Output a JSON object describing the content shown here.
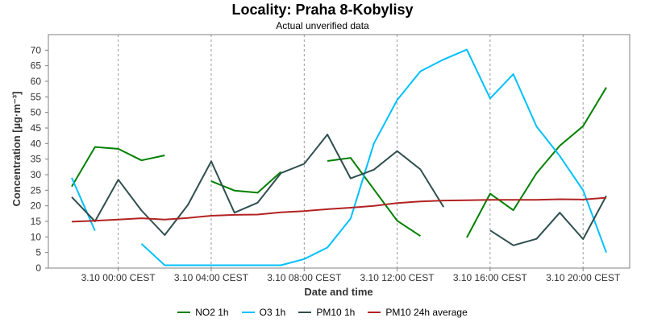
{
  "chart_data": {
    "type": "line",
    "title": "Locality: Praha 8-Kobylisy",
    "subtitle": "Actual unverified data",
    "xlabel": "Date and time",
    "ylabel": "Concentration [µg·m⁻³]",
    "ylim": [
      0,
      75
    ],
    "yticks": [
      0,
      5,
      10,
      15,
      20,
      25,
      30,
      35,
      40,
      45,
      50,
      55,
      60,
      65,
      70
    ],
    "x_tick_labels": [
      "3.10 00:00 CEST",
      "3.10 04:00 CEST",
      "3.10 08:00 CEST",
      "3.10 12:00 CEST",
      "3.10 16:00 CEST",
      "3.10 20:00 CEST"
    ],
    "x_tick_hours": [
      2,
      6,
      10,
      14,
      18,
      22
    ],
    "grid": true,
    "legend_position": "bottom",
    "series": [
      {
        "name": "NO2 1h",
        "color": "#008000",
        "values": [
          26.2,
          38.9,
          38.3,
          34.6,
          36.2,
          null,
          27.9,
          24.9,
          24.2,
          30.9,
          null,
          34.4,
          35.4,
          25.3,
          15.2,
          10.3,
          null,
          9.8,
          23.9,
          18.6,
          30.5,
          39.3,
          45.6,
          58.0
        ]
      },
      {
        "name": "O3 1h",
        "color": "#00BFFF",
        "values": [
          29.0,
          12.0,
          null,
          7.8,
          0.9,
          0.9,
          0.9,
          0.9,
          0.9,
          0.9,
          2.9,
          6.6,
          15.9,
          40.0,
          54.0,
          63.2,
          67.0,
          70.2,
          54.5,
          62.3,
          45.5,
          36.0,
          25.0,
          5.0
        ]
      },
      {
        "name": "PM10 1h",
        "color": "#2F4F4F",
        "values": [
          22.8,
          15.0,
          28.4,
          18.5,
          10.6,
          20.3,
          34.3,
          17.8,
          21.0,
          30.5,
          33.5,
          42.9,
          28.8,
          31.6,
          37.6,
          31.7,
          19.6,
          null,
          12.1,
          7.3,
          9.4,
          17.8,
          9.3,
          23.2
        ]
      },
      {
        "name": "PM10 24h average",
        "color": "#B22222",
        "values": [
          14.9,
          15.2,
          15.6,
          16.0,
          15.6,
          16.1,
          16.8,
          17.1,
          17.2,
          17.9,
          18.3,
          18.9,
          19.4,
          20.0,
          20.9,
          21.4,
          21.7,
          21.8,
          21.9,
          21.9,
          21.9,
          22.1,
          22.0,
          22.6
        ]
      }
    ]
  }
}
